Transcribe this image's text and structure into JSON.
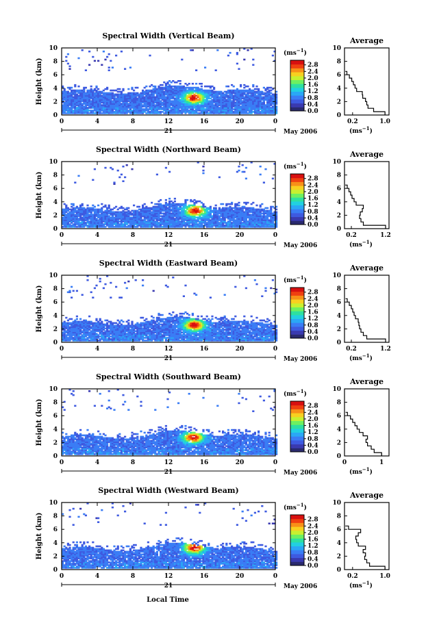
{
  "colors": {
    "colorbar": [
      "#2a2a6e",
      "#3a3ab0",
      "#3e5ae0",
      "#3a7df5",
      "#2aa8f5",
      "#22d0e0",
      "#2ee0a0",
      "#6ef060",
      "#c8f030",
      "#f8d020",
      "#f89018",
      "#f04010",
      "#d81010"
    ]
  },
  "figure": {
    "xlabel": "Local Time",
    "date_label": "May 2006",
    "day_label": "21",
    "colorbar_unit": "(ms",
    "avg_unit": "(ms",
    "unit_exp": "−1",
    "unit_close": ")"
  },
  "chart_data": [
    {
      "type": "heatmap",
      "title": "Spectral Width (Vertical Beam)",
      "ylabel": "Height (km)",
      "x_ticks": [
        "0",
        "4",
        "8",
        "12",
        "16",
        "20",
        "0"
      ],
      "y_ticks": [
        "0",
        "2",
        "4",
        "6",
        "8",
        "10"
      ],
      "xlim": [
        0,
        24
      ],
      "ylim": [
        0,
        10
      ],
      "colorbar_ticks": [
        "0.0",
        "0.4",
        "0.8",
        "1.2",
        "1.6",
        "2.0",
        "2.4",
        "2.8"
      ],
      "colorbar_range": [
        0,
        2.8
      ],
      "data_top_km": 4.2,
      "core_hour": 14.8,
      "core_km": 2.5,
      "avg_profile": {
        "title": "Average",
        "x_ticks": [
          "0.2",
          "1.0"
        ],
        "x_tick_values": [
          0.2,
          1.0
        ],
        "xlim": [
          0,
          1.1
        ],
        "height_km": [
          0,
          0.5,
          1,
          1.5,
          2,
          2.5,
          3,
          3.5,
          4,
          4.5,
          5,
          5.5,
          6,
          6.5
        ],
        "width_ms": [
          1.0,
          0.72,
          0.58,
          0.55,
          0.52,
          0.45,
          0.44,
          0.3,
          0.26,
          0.22,
          0.18,
          0.12,
          0.06,
          0.02
        ]
      }
    },
    {
      "type": "heatmap",
      "title": "Spectral Width (Northward Beam)",
      "ylabel": "Height (km)",
      "x_ticks": [
        "0",
        "4",
        "8",
        "12",
        "16",
        "20",
        "0"
      ],
      "y_ticks": [
        "0",
        "2",
        "4",
        "6",
        "8",
        "10"
      ],
      "xlim": [
        0,
        24
      ],
      "ylim": [
        0,
        10
      ],
      "colorbar_ticks": [
        "0.0",
        "0.4",
        "0.8",
        "1.2",
        "1.6",
        "2.0",
        "2.4",
        "2.8"
      ],
      "colorbar_range": [
        0,
        2.8
      ],
      "data_top_km": 3.6,
      "core_hour": 14.9,
      "core_km": 2.6,
      "avg_profile": {
        "title": "Average",
        "x_ticks": [
          "0.2",
          "1.2"
        ],
        "x_tick_values": [
          0.2,
          1.2
        ],
        "xlim": [
          0,
          1.3
        ],
        "height_km": [
          0,
          0.5,
          1,
          1.5,
          2,
          2.5,
          3,
          3.5,
          4,
          4.5,
          5,
          5.5,
          6,
          6.5
        ],
        "width_ms": [
          1.2,
          0.55,
          0.48,
          0.44,
          0.46,
          0.52,
          0.55,
          0.34,
          0.28,
          0.22,
          0.18,
          0.13,
          0.08,
          0.02
        ]
      }
    },
    {
      "type": "heatmap",
      "title": "Spectral Width (Eastward Beam)",
      "ylabel": "Height (km)",
      "x_ticks": [
        "0",
        "4",
        "8",
        "12",
        "16",
        "20",
        "0"
      ],
      "y_ticks": [
        "0",
        "2",
        "4",
        "6",
        "8",
        "10"
      ],
      "xlim": [
        0,
        24
      ],
      "ylim": [
        0,
        10
      ],
      "colorbar_ticks": [
        "0.0",
        "0.4",
        "0.8",
        "1.2",
        "1.6",
        "2.0",
        "2.4",
        "2.8"
      ],
      "colorbar_range": [
        0,
        2.8
      ],
      "data_top_km": 3.6,
      "core_hour": 14.8,
      "core_km": 2.5,
      "avg_profile": {
        "title": "Average",
        "x_ticks": [
          "0.2",
          "1.2"
        ],
        "x_tick_values": [
          0.2,
          1.2
        ],
        "xlim": [
          0,
          1.3
        ],
        "height_km": [
          0,
          0.5,
          1,
          1.5,
          2,
          2.5,
          3,
          3.5,
          4,
          4.5,
          5,
          5.5,
          6,
          6.5
        ],
        "width_ms": [
          1.2,
          0.65,
          0.55,
          0.48,
          0.44,
          0.42,
          0.4,
          0.32,
          0.28,
          0.24,
          0.2,
          0.14,
          0.08,
          0.03
        ]
      }
    },
    {
      "type": "heatmap",
      "title": "Spectral Width (Southward Beam)",
      "ylabel": "Height (km)",
      "x_ticks": [
        "0",
        "4",
        "8",
        "12",
        "16",
        "20",
        "0"
      ],
      "y_ticks": [
        "0",
        "2",
        "4",
        "6",
        "8",
        "10"
      ],
      "xlim": [
        0,
        24
      ],
      "ylim": [
        0,
        10
      ],
      "colorbar_ticks": [
        "0.0",
        "0.4",
        "0.8",
        "1.2",
        "1.6",
        "2.0",
        "2.4",
        "2.8"
      ],
      "colorbar_range": [
        0,
        2.8
      ],
      "data_top_km": 3.6,
      "core_hour": 14.7,
      "core_km": 2.7,
      "avg_profile": {
        "title": "Average",
        "x_ticks": [
          "0",
          "1"
        ],
        "x_tick_values": [
          0,
          1
        ],
        "xlim": [
          0,
          1.2
        ],
        "height_km": [
          0,
          0.5,
          1,
          1.5,
          2,
          2.5,
          3,
          3.5,
          4,
          4.5,
          5,
          5.5,
          6,
          6.5
        ],
        "width_ms": [
          1.0,
          0.8,
          0.72,
          0.62,
          0.58,
          0.62,
          0.5,
          0.4,
          0.34,
          0.28,
          0.22,
          0.16,
          0.08,
          0.03
        ]
      }
    },
    {
      "type": "heatmap",
      "title": "Spectral Width (Westward Beam)",
      "ylabel": "Height (km)",
      "x_ticks": [
        "0",
        "4",
        "8",
        "12",
        "16",
        "20",
        "0"
      ],
      "y_ticks": [
        "0",
        "2",
        "4",
        "6",
        "8",
        "10"
      ],
      "xlim": [
        0,
        24
      ],
      "ylim": [
        0,
        10
      ],
      "colorbar_ticks": [
        "0.0",
        "0.4",
        "0.8",
        "1.2",
        "1.6",
        "2.0",
        "2.4",
        "2.8"
      ],
      "colorbar_range": [
        0,
        2.8
      ],
      "data_top_km": 3.8,
      "core_hour": 14.8,
      "core_km": 3.2,
      "avg_profile": {
        "title": "Average",
        "x_ticks": [
          "0.2",
          "1.0"
        ],
        "x_tick_values": [
          0.2,
          1.0
        ],
        "xlim": [
          0,
          1.1
        ],
        "height_km": [
          0,
          0.5,
          1,
          1.5,
          2,
          2.5,
          3,
          3.5,
          4,
          4.5,
          5,
          5.5,
          6,
          6.5
        ],
        "width_ms": [
          1.0,
          0.62,
          0.55,
          0.5,
          0.52,
          0.46,
          0.52,
          0.34,
          0.3,
          0.28,
          0.34,
          0.4,
          0.1,
          0.02
        ]
      }
    }
  ]
}
